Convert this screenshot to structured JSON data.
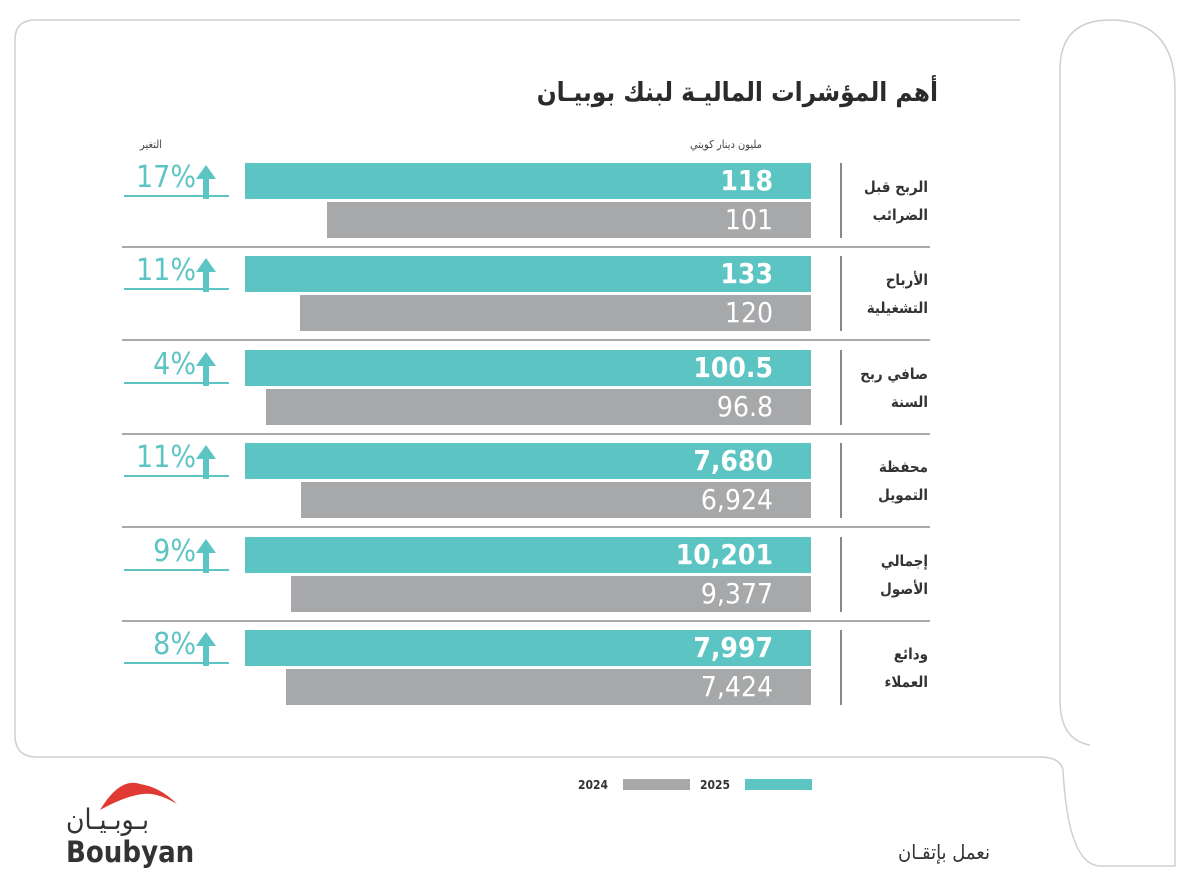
{
  "title": "أهم المؤشرات الماليـة لبنك بوبيـان",
  "unit_label": "مليون دينار كويتي",
  "change_label": "التغير",
  "legend": {
    "y2024": "2024",
    "y2025": "2025"
  },
  "slogan": "نعمل بإتقـان",
  "logo": {
    "ar": "بـوبـيـان",
    "en": "Boubyan"
  },
  "colors": {
    "y2025": "#5cc5c3",
    "y2024": "#a6a8aa"
  },
  "chart_data": {
    "type": "bar",
    "title": "أهم المؤشرات الماليـة لبنك بوبيـان",
    "ylabel": "مليون دينار كويتي",
    "categories": [
      "الربح قبل الضرائب",
      "الأرباح التشغيلية",
      "صافي ربح السنة",
      "محفظة التمويل",
      "إجمالي الأصول",
      "ودائع العملاء"
    ],
    "label_lines": [
      [
        "الربح قبل",
        "الضرائب"
      ],
      [
        "الأرباح",
        "التشغيلية"
      ],
      [
        "صافي ربح",
        "السنة"
      ],
      [
        "محفظة",
        "التمويل"
      ],
      [
        "إجمالي",
        "الأصول"
      ],
      [
        "ودائع",
        "العملاء"
      ]
    ],
    "series": [
      {
        "name": "2025",
        "values": [
          118,
          133,
          100.5,
          7680,
          10201,
          7997
        ],
        "labels": [
          "118",
          "133",
          "100.5",
          "7,680",
          "10,201",
          "7,997"
        ]
      },
      {
        "name": "2024",
        "values": [
          101,
          120,
          96.8,
          6924,
          9377,
          7424
        ],
        "labels": [
          "101",
          "120",
          "96.8",
          "6,924",
          "9,377",
          "7,424"
        ]
      }
    ],
    "change": [
      "17%",
      "11%",
      "4%",
      "11%",
      "9%",
      "8%"
    ]
  }
}
